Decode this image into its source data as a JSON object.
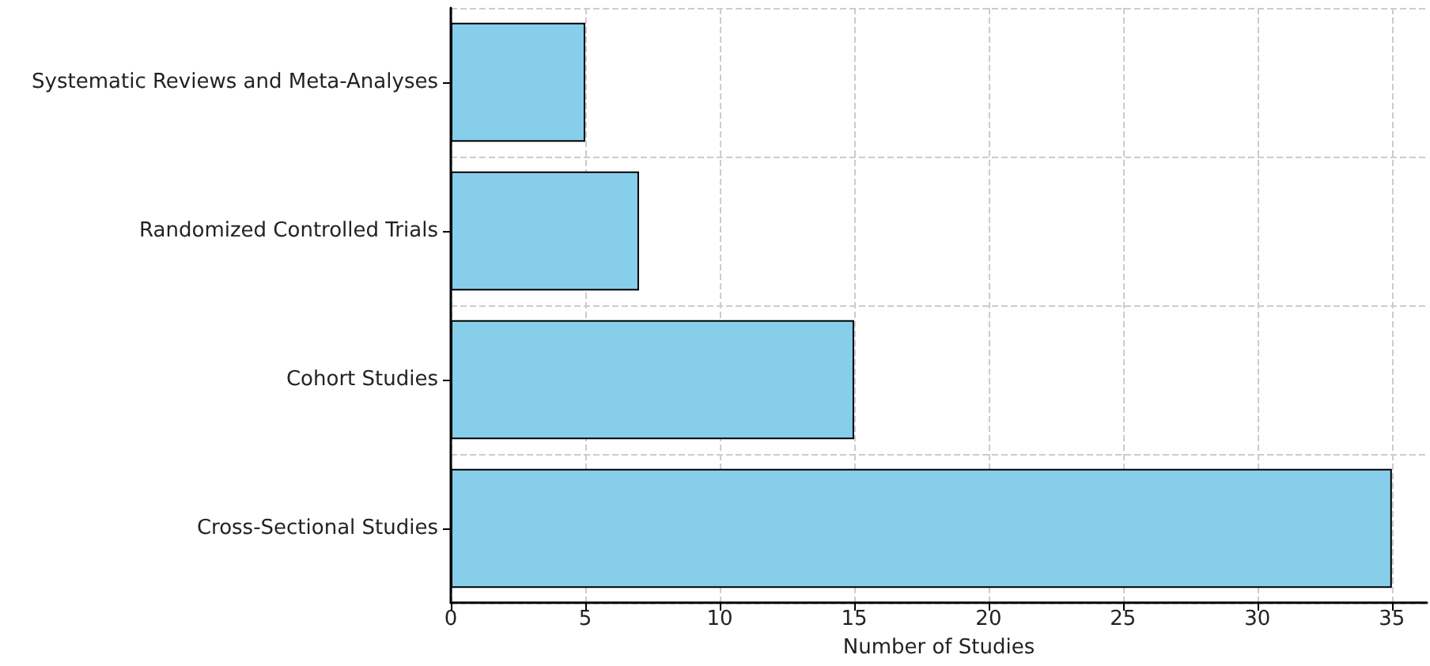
{
  "chart_data": {
    "type": "bar",
    "orientation": "horizontal",
    "xlabel": "Number of Studies",
    "categories": [
      "Systematic Reviews and Meta-Analyses",
      "Randomized Controlled Trials",
      "Cohort Studies",
      "Cross-Sectional Studies"
    ],
    "values": [
      5,
      7,
      15,
      35
    ],
    "color": "#87ceeb",
    "xlim": [
      0,
      36.3
    ],
    "xticks": [
      0,
      5,
      10,
      15,
      20,
      25,
      30,
      35
    ],
    "grid": true
  }
}
